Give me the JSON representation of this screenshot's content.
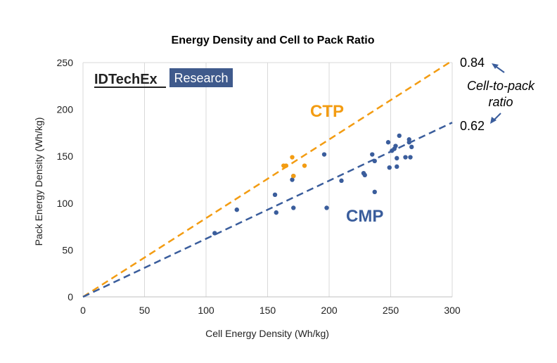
{
  "chart_data": {
    "type": "scatter",
    "title": "Energy Density and Cell to Pack Ratio",
    "xlabel": "Cell Energy Density (Wh/kg)",
    "ylabel": "Pack Energy Density (Wh/kg)",
    "xlim": [
      0,
      300
    ],
    "ylim": [
      0,
      250
    ],
    "x_ticks": [
      "0",
      "50",
      "100",
      "150",
      "200",
      "250",
      "300"
    ],
    "y_ticks": [
      "0",
      "50",
      "100",
      "150",
      "200",
      "250"
    ],
    "grid": "vertical",
    "logo": {
      "main": "IDTechEx",
      "sub": "Research"
    },
    "series": [
      {
        "name": "CTP",
        "color": "#F39C12",
        "points": [
          [
            163,
            140
          ],
          [
            165,
            140
          ],
          [
            170,
            149
          ],
          [
            171,
            129
          ],
          [
            180,
            140
          ]
        ],
        "trend_slope": 0.84,
        "trend_label": "0.84"
      },
      {
        "name": "CMP",
        "color": "#3A5D9C",
        "points": [
          [
            107,
            68
          ],
          [
            125,
            93
          ],
          [
            156,
            109
          ],
          [
            157,
            90
          ],
          [
            170,
            125
          ],
          [
            171,
            95
          ],
          [
            171,
            129
          ],
          [
            196,
            152
          ],
          [
            198,
            95
          ],
          [
            210,
            124
          ],
          [
            228,
            132
          ],
          [
            229,
            130
          ],
          [
            235,
            152
          ],
          [
            237,
            145
          ],
          [
            237,
            112
          ],
          [
            248,
            165
          ],
          [
            249,
            138
          ],
          [
            251,
            156
          ],
          [
            253,
            158
          ],
          [
            254,
            161
          ],
          [
            255,
            139
          ],
          [
            255,
            148
          ],
          [
            257,
            172
          ],
          [
            262,
            149
          ],
          [
            265,
            165
          ],
          [
            265,
            168
          ],
          [
            266,
            149
          ],
          [
            267,
            160
          ]
        ],
        "trend_slope": 0.62,
        "trend_label": "0.62"
      }
    ],
    "annotation": {
      "line1": "Cell-to-pack",
      "line2": "ratio"
    }
  }
}
